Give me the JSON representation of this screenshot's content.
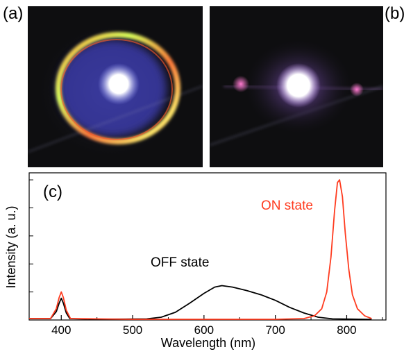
{
  "panels": {
    "a": "(a)",
    "b": "(b)",
    "c": "(c)"
  },
  "chart_data": {
    "type": "line",
    "title": "",
    "xlabel": "Wavelength (nm)",
    "ylabel": "Intensity (a. u.)",
    "xlim": [
      355,
      855
    ],
    "ylim": [
      0,
      1.05
    ],
    "x_ticks": [
      400,
      500,
      600,
      700,
      800
    ],
    "y_ticks_labeled": false,
    "series": [
      {
        "name": "OFF state",
        "color": "#000000",
        "points": [
          [
            355,
            0.01
          ],
          [
            385,
            0.01
          ],
          [
            393,
            0.06
          ],
          [
            397,
            0.12
          ],
          [
            400,
            0.155
          ],
          [
            403,
            0.12
          ],
          [
            407,
            0.05
          ],
          [
            412,
            0.01
          ],
          [
            450,
            0.005
          ],
          [
            520,
            0.008
          ],
          [
            540,
            0.02
          ],
          [
            560,
            0.055
          ],
          [
            580,
            0.12
          ],
          [
            600,
            0.19
          ],
          [
            615,
            0.235
          ],
          [
            625,
            0.245
          ],
          [
            640,
            0.235
          ],
          [
            660,
            0.21
          ],
          [
            680,
            0.18
          ],
          [
            700,
            0.14
          ],
          [
            720,
            0.09
          ],
          [
            740,
            0.05
          ],
          [
            760,
            0.02
          ],
          [
            780,
            0.008
          ],
          [
            835,
            0.004
          ]
        ]
      },
      {
        "name": "ON state",
        "color": "#ff3b1f",
        "points": [
          [
            355,
            0.01
          ],
          [
            385,
            0.01
          ],
          [
            393,
            0.08
          ],
          [
            397,
            0.16
          ],
          [
            400,
            0.2
          ],
          [
            403,
            0.16
          ],
          [
            407,
            0.07
          ],
          [
            413,
            0.01
          ],
          [
            500,
            0.005
          ],
          [
            700,
            0.005
          ],
          [
            740,
            0.01
          ],
          [
            755,
            0.03
          ],
          [
            765,
            0.08
          ],
          [
            772,
            0.2
          ],
          [
            778,
            0.45
          ],
          [
            783,
            0.78
          ],
          [
            787,
            0.98
          ],
          [
            790,
            1.0
          ],
          [
            794,
            0.88
          ],
          [
            798,
            0.62
          ],
          [
            803,
            0.36
          ],
          [
            808,
            0.18
          ],
          [
            815,
            0.08
          ],
          [
            825,
            0.03
          ],
          [
            835,
            0.01
          ]
        ]
      }
    ]
  }
}
